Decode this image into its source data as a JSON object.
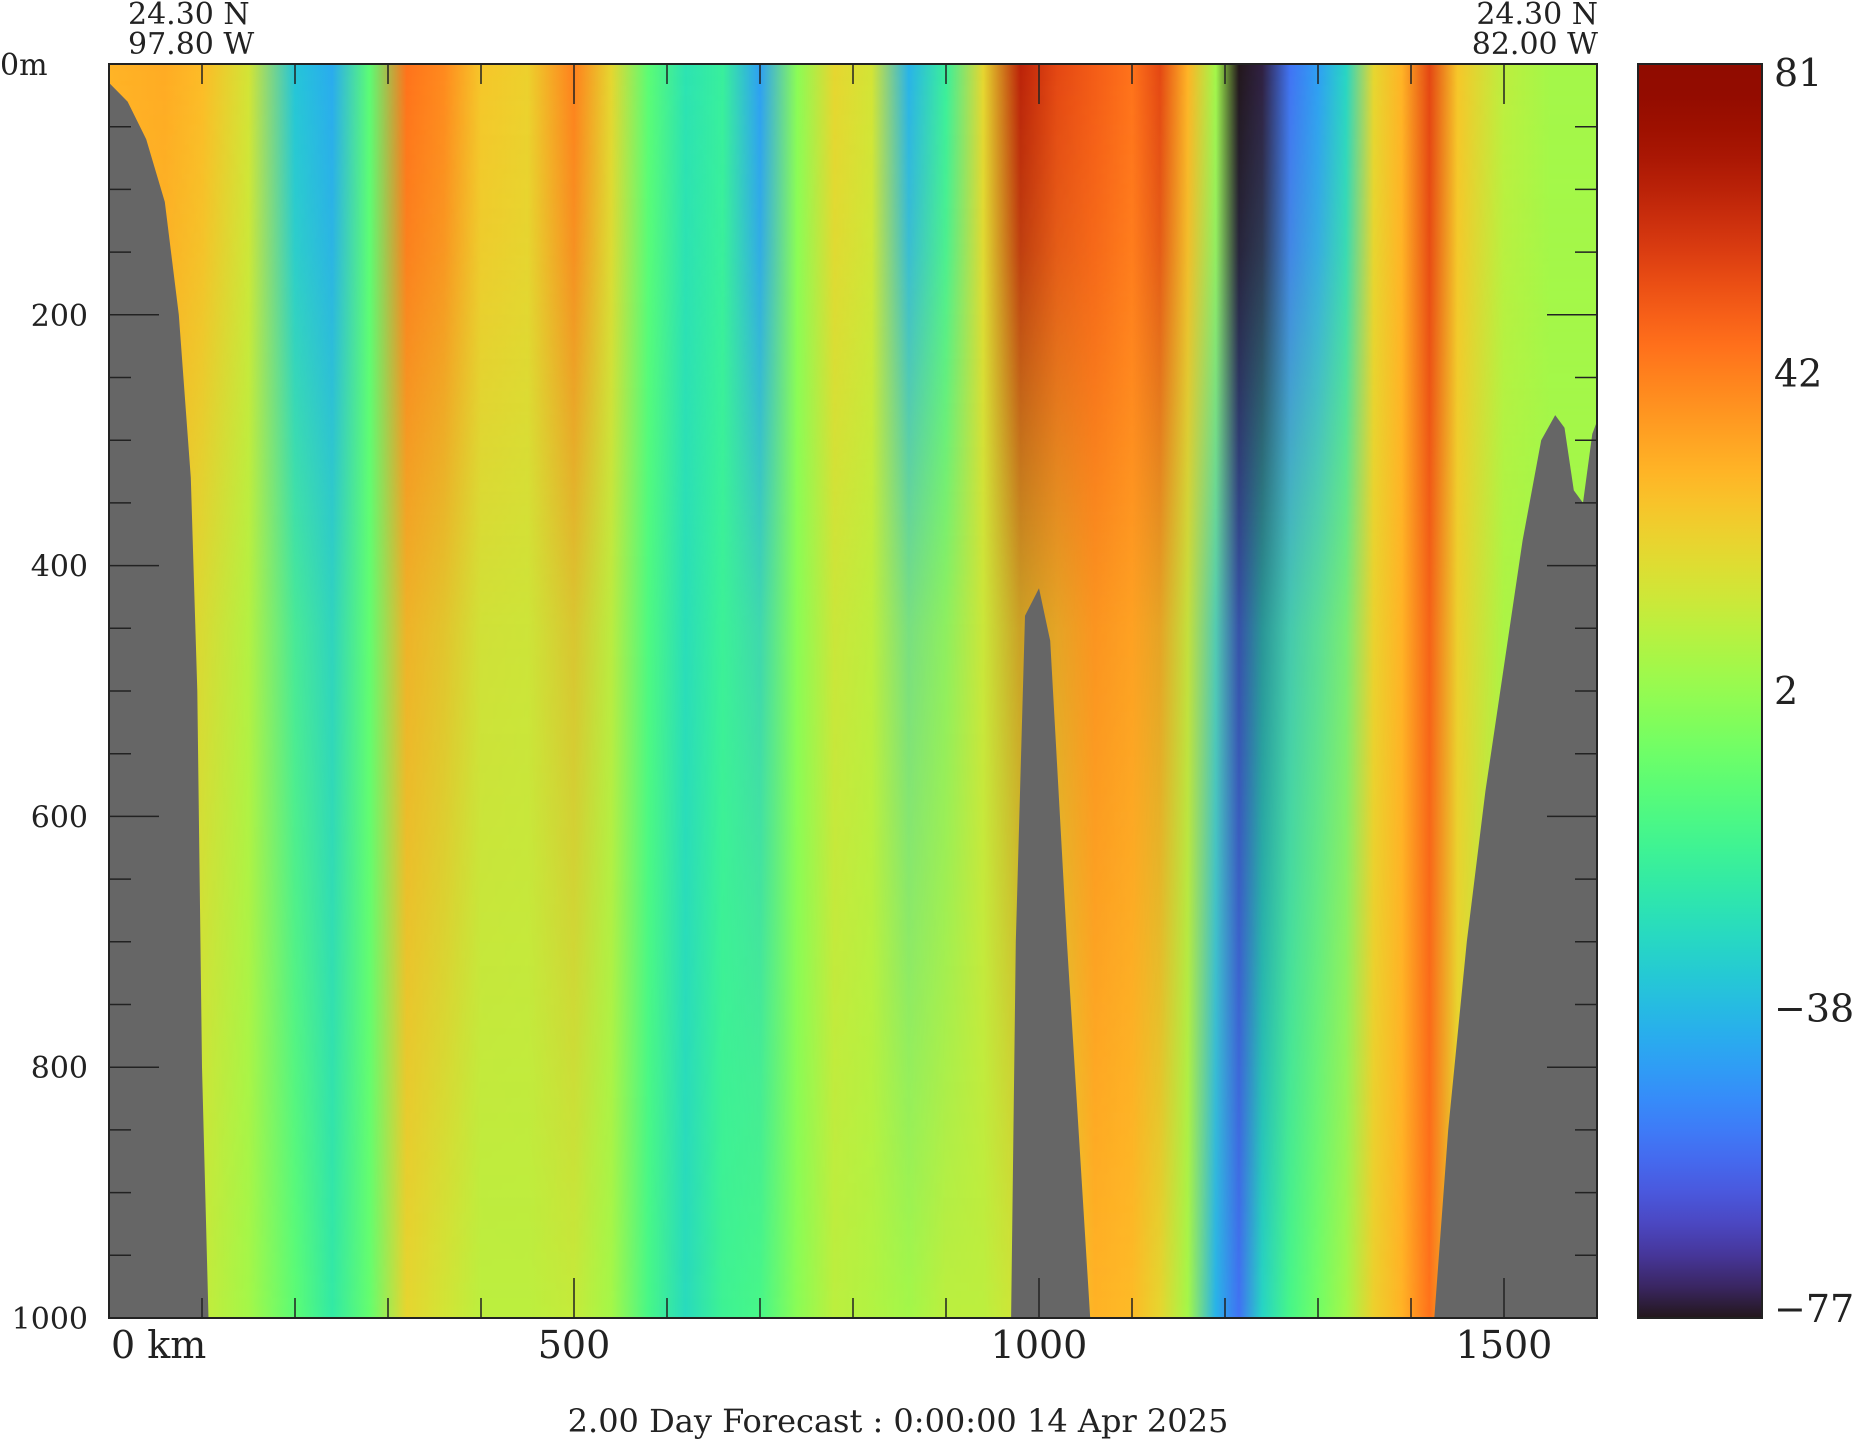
{
  "chart_data": {
    "type": "heatmap",
    "title": "",
    "caption": "2.00 Day Forecast :  0:00:00  14 Apr 2025",
    "corners": {
      "left": {
        "lat": "24.30 N",
        "lon": "97.80 W"
      },
      "right": {
        "lat": "24.30 N",
        "lon": "82.00 W"
      }
    },
    "x": {
      "range": [
        0,
        1600
      ],
      "ticks": [
        0,
        500,
        1000,
        1500
      ],
      "tick_labels": [
        "0 km",
        "500",
        "1000",
        "1500"
      ],
      "minor_step": 100
    },
    "y": {
      "range": [
        0,
        1000
      ],
      "inverted": true,
      "ticks": [
        0,
        200,
        400,
        600,
        800,
        1000
      ],
      "tick_labels": [
        "0m",
        "200",
        "400",
        "600",
        "800",
        "1000"
      ],
      "minor_step": 50
    },
    "colorbar": {
      "min": -77,
      "max": 81,
      "ticks": [
        81,
        42,
        2,
        -38,
        -77
      ],
      "tick_labels": [
        "81",
        "42",
        "2",
        "−38",
        "−77"
      ],
      "colormap": "turbo"
    },
    "land_color": "#666666",
    "columns": [
      {
        "x": 0,
        "surface": 30,
        "deep": 25
      },
      {
        "x": 60,
        "surface": 32,
        "deep": 20
      },
      {
        "x": 100,
        "surface": 28,
        "deep": 12
      },
      {
        "x": 150,
        "surface": 15,
        "deep": 5
      },
      {
        "x": 200,
        "surface": -35,
        "deep": -10
      },
      {
        "x": 240,
        "surface": -42,
        "deep": -22
      },
      {
        "x": 280,
        "surface": -10,
        "deep": -8
      },
      {
        "x": 320,
        "surface": 45,
        "deep": 20
      },
      {
        "x": 360,
        "surface": 40,
        "deep": 15
      },
      {
        "x": 400,
        "surface": 25,
        "deep": 10
      },
      {
        "x": 450,
        "surface": 22,
        "deep": 10
      },
      {
        "x": 500,
        "surface": 42,
        "deep": 12
      },
      {
        "x": 540,
        "surface": 20,
        "deep": 5
      },
      {
        "x": 580,
        "surface": -10,
        "deep": -15
      },
      {
        "x": 620,
        "surface": -25,
        "deep": -28
      },
      {
        "x": 660,
        "surface": -20,
        "deep": -18
      },
      {
        "x": 700,
        "surface": -45,
        "deep": -15
      },
      {
        "x": 740,
        "surface": 0,
        "deep": 0
      },
      {
        "x": 780,
        "surface": 20,
        "deep": 10
      },
      {
        "x": 820,
        "surface": 15,
        "deep": 8
      },
      {
        "x": 860,
        "surface": -40,
        "deep": 5
      },
      {
        "x": 900,
        "surface": -20,
        "deep": 10
      },
      {
        "x": 940,
        "surface": 20,
        "deep": 10
      },
      {
        "x": 980,
        "surface": 65,
        "deep": 15
      },
      {
        "x": 1020,
        "surface": 55,
        "deep": 20
      },
      {
        "x": 1060,
        "surface": 50,
        "deep": 30
      },
      {
        "x": 1100,
        "surface": 45,
        "deep": 28
      },
      {
        "x": 1130,
        "surface": 55,
        "deep": 20
      },
      {
        "x": 1160,
        "surface": 30,
        "deep": 5
      },
      {
        "x": 1190,
        "surface": 5,
        "deep": -40
      },
      {
        "x": 1215,
        "surface": -77,
        "deep": -55
      },
      {
        "x": 1240,
        "surface": -75,
        "deep": -30
      },
      {
        "x": 1270,
        "surface": -55,
        "deep": -15
      },
      {
        "x": 1300,
        "surface": -45,
        "deep": -5
      },
      {
        "x": 1330,
        "surface": -30,
        "deep": 5
      },
      {
        "x": 1360,
        "surface": 20,
        "deep": 22
      },
      {
        "x": 1390,
        "surface": 30,
        "deep": 30
      },
      {
        "x": 1420,
        "surface": 55,
        "deep": 45
      },
      {
        "x": 1450,
        "surface": 25,
        "deep": 20
      },
      {
        "x": 1500,
        "surface": 10,
        "deep": 5
      },
      {
        "x": 1550,
        "surface": 5,
        "deep": 5
      },
      {
        "x": 1600,
        "surface": 5,
        "deep": 5
      }
    ],
    "bathymetry": [
      {
        "x": 0,
        "depth": 15
      },
      {
        "x": 20,
        "depth": 30
      },
      {
        "x": 40,
        "depth": 60
      },
      {
        "x": 60,
        "depth": 110
      },
      {
        "x": 75,
        "depth": 200
      },
      {
        "x": 88,
        "depth": 330
      },
      {
        "x": 95,
        "depth": 500
      },
      {
        "x": 100,
        "depth": 800
      },
      {
        "x": 107,
        "depth": 1000
      },
      {
        "x": 970,
        "depth": 1000
      },
      {
        "x": 975,
        "depth": 700
      },
      {
        "x": 985,
        "depth": 440
      },
      {
        "x": 1000,
        "depth": 418
      },
      {
        "x": 1012,
        "depth": 460
      },
      {
        "x": 1030,
        "depth": 700
      },
      {
        "x": 1055,
        "depth": 1000
      },
      {
        "x": 1425,
        "depth": 1000
      },
      {
        "x": 1440,
        "depth": 850
      },
      {
        "x": 1460,
        "depth": 700
      },
      {
        "x": 1480,
        "depth": 580
      },
      {
        "x": 1500,
        "depth": 480
      },
      {
        "x": 1520,
        "depth": 380
      },
      {
        "x": 1540,
        "depth": 300
      },
      {
        "x": 1555,
        "depth": 280
      },
      {
        "x": 1565,
        "depth": 290
      },
      {
        "x": 1575,
        "depth": 340
      },
      {
        "x": 1585,
        "depth": 350
      },
      {
        "x": 1595,
        "depth": 295
      },
      {
        "x": 1600,
        "depth": 285
      }
    ]
  }
}
